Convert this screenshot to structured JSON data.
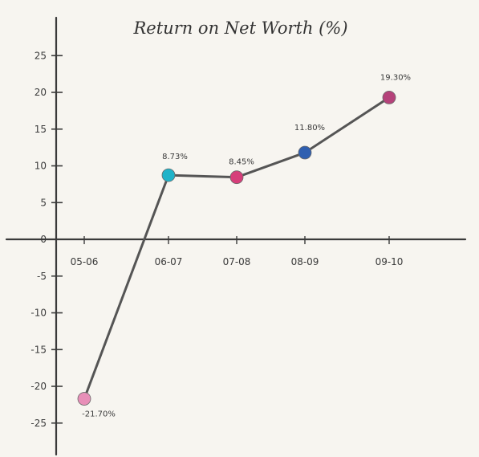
{
  "chart_data": {
    "type": "line",
    "title": "Return on Net Worth (%)",
    "xlabel": "",
    "ylabel": "",
    "categories": [
      "05-06",
      "06-07",
      "07-08",
      "08-09",
      "09-10"
    ],
    "series": [
      {
        "values": [
          -21.7,
          8.73,
          8.45,
          11.8,
          19.3
        ],
        "data_labels": [
          "-21.70%",
          "8.73%",
          "8.45%",
          "11.80%",
          "19.30%"
        ],
        "point_colors": [
          "#e88fb8",
          "#1fb3c9",
          "#d63e7a",
          "#2f5fb0",
          "#b5427a"
        ]
      }
    ],
    "y_ticks": [
      -25,
      -20,
      -15,
      -10,
      -5,
      0,
      5,
      10,
      15,
      20,
      25
    ],
    "y_tick_labels": [
      "-25",
      "-20",
      "-15",
      "-10",
      "-5",
      "0",
      "5",
      "10",
      "15",
      "20",
      "25"
    ],
    "ylim": [
      -25,
      25
    ],
    "grid": false,
    "line_color": "#555555",
    "axis_color": "#3a3a3a"
  }
}
